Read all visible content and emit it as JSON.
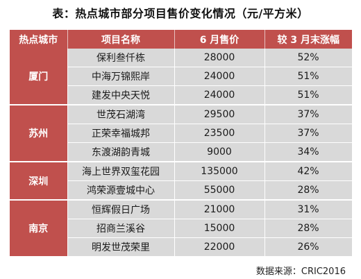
{
  "title": "表：热点城市部分项目售价变化情况（元/平方米）",
  "table": {
    "headers": [
      "热点城市",
      "项目名称",
      "6 月售价",
      "较 3 月末涨幅"
    ],
    "groups": [
      {
        "city": "厦门",
        "rows": [
          {
            "name": "保利叁仟栋",
            "price": "28000",
            "rise": "52%"
          },
          {
            "name": "中海万锦熙岸",
            "price": "24000",
            "rise": "51%"
          },
          {
            "name": "建发中央天悦",
            "price": "24000",
            "rise": "51%"
          }
        ]
      },
      {
        "city": "苏州",
        "rows": [
          {
            "name": "世茂石湖湾",
            "price": "29500",
            "rise": "37%"
          },
          {
            "name": "正荣幸福城邦",
            "price": "23500",
            "rise": "37%"
          },
          {
            "name": "东渡湖韵青城",
            "price": "9000",
            "rise": "34%"
          }
        ]
      },
      {
        "city": "深圳",
        "rows": [
          {
            "name": "海上世界双玺花园",
            "price": "135000",
            "rise": "42%"
          },
          {
            "name": "鸿荣源壹城中心",
            "price": "55000",
            "rise": "28%"
          }
        ]
      },
      {
        "city": "南京",
        "rows": [
          {
            "name": "恒辉假日广场",
            "price": "21000",
            "rise": "31%"
          },
          {
            "name": "招商兰溪谷",
            "price": "15000",
            "rise": "28%"
          },
          {
            "name": "明发世茂荣里",
            "price": "22000",
            "rise": "26%"
          }
        ]
      }
    ]
  },
  "source": "数据来源：CRIC2016",
  "colors": {
    "header_bg": "#c0504d",
    "city_bg": "#c0504d",
    "cell_bg": "#d9d9d9",
    "header_text": "#ffffff"
  }
}
